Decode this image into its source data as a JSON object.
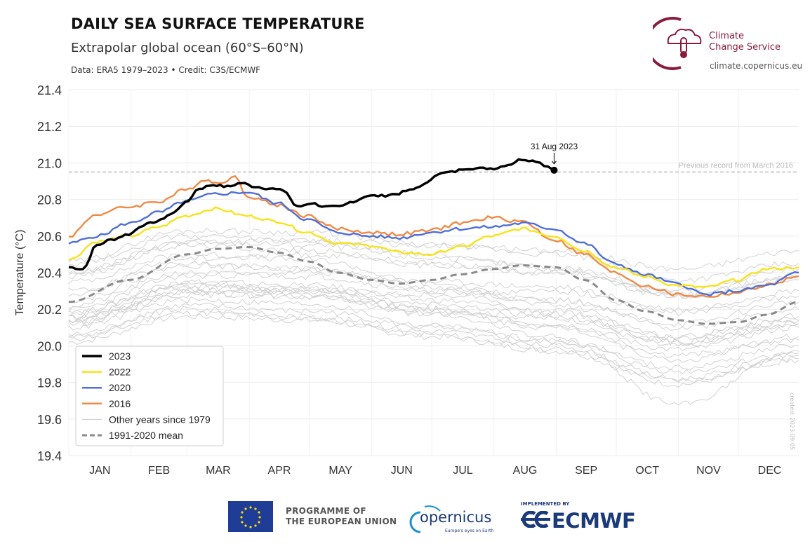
{
  "header": {
    "title": "DAILY SEA SURFACE TEMPERATURE",
    "subtitle": "Extrapolar global ocean (60°S–60°N)",
    "credit": "Data: ERA5 1979–2023 • Credit: C3S/ECMWF"
  },
  "branding": {
    "c3s_line1": "Climate",
    "c3s_line2": "Change Service",
    "c3s_url": "climate.copernicus.eu",
    "created": "created: 2023-09-05",
    "programme_line1": "PROGRAMME OF",
    "programme_line2": "THE EUROPEAN UNION",
    "copernicus": "opernicus",
    "copernicus_tag": "Europe's eyes on Earth",
    "ecmwf_implemented": "IMPLEMENTED BY",
    "ecmwf": "ECMWF"
  },
  "colors": {
    "y2023": "#000000",
    "y2022": "#f7e31a",
    "y2020": "#4f6fd6",
    "y2016": "#f08a46",
    "other": "#d2d2d2",
    "mean": "#8a8a8a",
    "record": "#b8b8b8",
    "c3s": "#8a1c3b"
  },
  "chart_data": {
    "type": "line",
    "title": "DAILY SEA SURFACE TEMPERATURE",
    "ylabel": "Temperature (°C)",
    "xlabel": "",
    "ylim": [
      19.4,
      21.4
    ],
    "yticks": [
      "19.4",
      "19.6",
      "19.8",
      "20.0",
      "20.2",
      "20.4",
      "20.6",
      "20.8",
      "21.0",
      "21.2",
      "21.4"
    ],
    "months": [
      "JAN",
      "FEB",
      "MAR",
      "APR",
      "MAY",
      "JUN",
      "JUL",
      "AUG",
      "SEP",
      "OCT",
      "NOV",
      "DEC"
    ],
    "record_value": 20.95,
    "record_label": "Previous record from March 2016",
    "annotation": {
      "label": "31 Aug 2023",
      "day": 243,
      "value": 20.96
    },
    "legend": [
      "2023",
      "2022",
      "2020",
      "2016",
      "Other years since 1979",
      "1991-2020 mean"
    ],
    "legend_position": "bottom-left",
    "series": [
      {
        "name": "2023",
        "days": [
          1,
          8,
          15,
          22,
          31,
          38,
          45,
          52,
          59,
          66,
          73,
          80,
          87,
          94,
          101,
          108,
          115,
          122,
          129,
          136,
          143,
          150,
          157,
          164,
          171,
          178,
          185,
          192,
          199,
          206,
          213,
          220,
          227,
          234,
          240,
          243
        ],
        "values": [
          20.43,
          20.42,
          20.55,
          20.58,
          20.61,
          20.66,
          20.68,
          20.72,
          20.78,
          20.86,
          20.88,
          20.87,
          20.89,
          20.87,
          20.86,
          20.85,
          20.76,
          20.78,
          20.76,
          20.76,
          20.79,
          20.82,
          20.82,
          20.83,
          20.85,
          20.88,
          20.94,
          20.95,
          20.97,
          20.97,
          20.97,
          20.99,
          21.02,
          21.01,
          20.98,
          20.96
        ]
      },
      {
        "name": "2022",
        "days": [
          1,
          15,
          31,
          46,
          59,
          74,
          90,
          105,
          120,
          135,
          151,
          166,
          181,
          196,
          212,
          227,
          243,
          258,
          273,
          288,
          304,
          319,
          334,
          349,
          365
        ],
        "values": [
          20.47,
          20.57,
          20.6,
          20.65,
          20.71,
          20.75,
          20.71,
          20.68,
          20.62,
          20.56,
          20.55,
          20.51,
          20.5,
          20.54,
          20.6,
          20.64,
          20.6,
          20.52,
          20.43,
          20.38,
          20.33,
          20.32,
          20.36,
          20.42,
          20.43
        ]
      },
      {
        "name": "2020",
        "days": [
          1,
          15,
          31,
          46,
          59,
          74,
          90,
          105,
          120,
          135,
          151,
          166,
          181,
          196,
          212,
          227,
          243,
          258,
          273,
          288,
          304,
          319,
          334,
          349,
          365
        ],
        "values": [
          20.56,
          20.6,
          20.67,
          20.73,
          20.79,
          20.83,
          20.84,
          20.78,
          20.69,
          20.62,
          20.6,
          20.59,
          20.62,
          20.64,
          20.65,
          20.67,
          20.64,
          20.56,
          20.45,
          20.39,
          20.34,
          20.28,
          20.3,
          20.33,
          20.4
        ]
      },
      {
        "name": "2016",
        "days": [
          1,
          15,
          31,
          46,
          59,
          69,
          74,
          84,
          90,
          105,
          120,
          135,
          151,
          166,
          181,
          196,
          212,
          227,
          243,
          258,
          273,
          288,
          304,
          319,
          334,
          349,
          365
        ],
        "values": [
          20.6,
          20.72,
          20.76,
          20.79,
          20.85,
          20.91,
          20.89,
          20.92,
          20.82,
          20.77,
          20.71,
          20.64,
          20.62,
          20.61,
          20.63,
          20.67,
          20.7,
          20.68,
          20.58,
          20.5,
          20.4,
          20.33,
          20.28,
          20.27,
          20.29,
          20.33,
          20.38
        ]
      },
      {
        "name": "1991-2020 mean",
        "days": [
          1,
          31,
          60,
          75,
          91,
          105,
          121,
          135,
          152,
          166,
          182,
          196,
          213,
          227,
          244,
          258,
          274,
          288,
          305,
          319,
          335,
          349,
          365
        ],
        "values": [
          20.24,
          20.36,
          20.5,
          20.53,
          20.54,
          20.51,
          20.46,
          20.4,
          20.36,
          20.34,
          20.36,
          20.39,
          20.42,
          20.44,
          20.43,
          20.36,
          20.25,
          20.19,
          20.14,
          20.12,
          20.13,
          20.17,
          20.24
        ]
      }
    ],
    "other_years": [
      {
        "name": "1979",
        "days": [
          1,
          60,
          121,
          182,
          244,
          305,
          365
        ],
        "values": [
          20.02,
          20.16,
          20.14,
          20.05,
          19.97,
          19.79,
          19.93
        ]
      },
      {
        "name": "1980",
        "days": [
          1,
          60,
          121,
          182,
          244,
          305,
          365
        ],
        "values": [
          20.06,
          20.22,
          20.19,
          20.1,
          20.02,
          19.86,
          19.96
        ]
      },
      {
        "name": "1981",
        "days": [
          1,
          60,
          121,
          182,
          244,
          305,
          365
        ],
        "values": [
          20.05,
          20.2,
          20.16,
          20.08,
          20.0,
          19.82,
          19.95
        ]
      },
      {
        "name": "1983",
        "days": [
          1,
          60,
          121,
          182,
          244,
          305,
          365
        ],
        "values": [
          20.14,
          20.3,
          20.28,
          20.18,
          20.1,
          19.92,
          20.05
        ]
      },
      {
        "name": "1985",
        "days": [
          1,
          60,
          121,
          182,
          244,
          305,
          365
        ],
        "values": [
          20.04,
          20.18,
          20.15,
          20.06,
          19.98,
          19.81,
          19.92
        ]
      },
      {
        "name": "1987",
        "days": [
          1,
          60,
          121,
          182,
          244,
          305,
          365
        ],
        "values": [
          20.16,
          20.32,
          20.31,
          20.23,
          20.16,
          20.02,
          20.14
        ]
      },
      {
        "name": "1988",
        "days": [
          1,
          60,
          121,
          182,
          244,
          305,
          365
        ],
        "values": [
          20.18,
          20.34,
          20.3,
          20.2,
          20.11,
          19.95,
          20.03
        ]
      },
      {
        "name": "1990",
        "days": [
          1,
          60,
          121,
          182,
          244,
          305,
          365
        ],
        "values": [
          20.13,
          20.29,
          20.27,
          20.19,
          20.12,
          19.98,
          20.1
        ]
      },
      {
        "name": "1991",
        "days": [
          1,
          60,
          121,
          182,
          244,
          305,
          365
        ],
        "values": [
          20.12,
          20.28,
          20.27,
          20.17,
          20.05,
          19.68,
          19.97
        ]
      },
      {
        "name": "1992",
        "days": [
          1,
          60,
          121,
          182,
          244,
          305,
          365
        ],
        "values": [
          20.1,
          20.25,
          20.23,
          20.11,
          20.03,
          19.88,
          20.0
        ]
      },
      {
        "name": "1995",
        "days": [
          1,
          60,
          121,
          182,
          244,
          305,
          365
        ],
        "values": [
          20.15,
          20.33,
          20.31,
          20.2,
          20.15,
          20.0,
          20.12
        ]
      },
      {
        "name": "1997",
        "days": [
          1,
          60,
          121,
          182,
          244,
          305,
          365
        ],
        "values": [
          20.12,
          20.3,
          20.3,
          20.28,
          20.3,
          20.18,
          20.27
        ]
      },
      {
        "name": "1998",
        "days": [
          1,
          60,
          121,
          182,
          244,
          305,
          365
        ],
        "values": [
          20.3,
          20.45,
          20.42,
          20.3,
          20.18,
          20.02,
          20.12
        ]
      },
      {
        "name": "2001",
        "days": [
          1,
          60,
          121,
          182,
          244,
          305,
          365
        ],
        "values": [
          20.18,
          20.35,
          20.33,
          20.25,
          20.19,
          20.05,
          20.16
        ]
      },
      {
        "name": "2002",
        "days": [
          1,
          60,
          121,
          182,
          244,
          305,
          365
        ],
        "values": [
          20.22,
          20.4,
          20.38,
          20.3,
          20.25,
          20.12,
          20.24
        ]
      },
      {
        "name": "2005",
        "days": [
          1,
          60,
          121,
          182,
          244,
          305,
          365
        ],
        "values": [
          20.25,
          20.44,
          20.42,
          20.32,
          20.25,
          20.1,
          20.2
        ]
      },
      {
        "name": "2009",
        "days": [
          1,
          60,
          121,
          182,
          244,
          305,
          365
        ],
        "values": [
          20.2,
          20.38,
          20.4,
          20.35,
          20.32,
          20.2,
          20.3
        ]
      },
      {
        "name": "2010",
        "days": [
          1,
          60,
          121,
          182,
          244,
          305,
          365
        ],
        "values": [
          20.35,
          20.5,
          20.47,
          20.34,
          20.22,
          20.05,
          20.14
        ]
      },
      {
        "name": "2014",
        "days": [
          1,
          60,
          121,
          182,
          244,
          305,
          365
        ],
        "values": [
          20.28,
          20.48,
          20.5,
          20.44,
          20.4,
          20.27,
          20.36
        ]
      },
      {
        "name": "2015",
        "days": [
          1,
          60,
          121,
          182,
          244,
          305,
          365
        ],
        "values": [
          20.4,
          20.56,
          20.58,
          20.55,
          20.52,
          20.42,
          20.52
        ]
      },
      {
        "name": "2017",
        "days": [
          1,
          60,
          121,
          182,
          244,
          305,
          365
        ],
        "values": [
          20.45,
          20.6,
          20.57,
          20.5,
          20.42,
          20.27,
          20.38
        ]
      },
      {
        "name": "2018",
        "days": [
          1,
          60,
          121,
          182,
          244,
          305,
          365
        ],
        "values": [
          20.38,
          20.55,
          20.52,
          20.45,
          20.4,
          20.28,
          20.38
        ]
      },
      {
        "name": "2019",
        "days": [
          1,
          60,
          121,
          182,
          244,
          305,
          365
        ],
        "values": [
          20.46,
          20.63,
          20.62,
          20.55,
          20.5,
          20.36,
          20.45
        ]
      },
      {
        "name": "2021",
        "days": [
          1,
          60,
          121,
          182,
          244,
          305,
          365
        ],
        "values": [
          20.4,
          20.57,
          20.55,
          20.48,
          20.43,
          20.3,
          20.42
        ]
      }
    ]
  }
}
